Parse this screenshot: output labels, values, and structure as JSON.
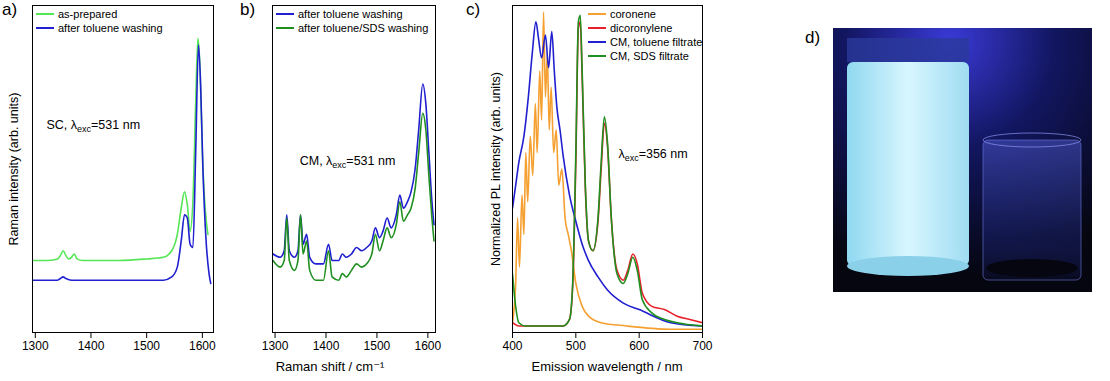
{
  "chart_data": [
    {
      "type": "line",
      "panel": "a)",
      "ylabel": "Raman intensity (arb. units)",
      "annotation": "SC, λexc=531 nm",
      "xlim": [
        1295,
        1620
      ],
      "xticks": [
        1300,
        1400,
        1500,
        1600
      ],
      "ylim": [
        0,
        100
      ],
      "yticks": [],
      "tick_labels": "x",
      "grid": false,
      "legend": "top-left",
      "series": [
        {
          "name": "as-prepared",
          "color": "#55e655",
          "x": [
            1296,
            1320,
            1340,
            1345,
            1350,
            1355,
            1360,
            1365,
            1370,
            1375,
            1385,
            1400,
            1450,
            1500,
            1530,
            1545,
            1555,
            1562,
            1568,
            1573,
            1578,
            1583,
            1588,
            1592,
            1596,
            1600,
            1605,
            1610
          ],
          "values": [
            22,
            22,
            22.5,
            23.5,
            25,
            23.5,
            22.5,
            23,
            24,
            22.5,
            22,
            22,
            22,
            22.5,
            23,
            25,
            30,
            38,
            43,
            39,
            31,
            40,
            70,
            90,
            80,
            55,
            38,
            30
          ]
        },
        {
          "name": "after toluene washing",
          "color": "#2020d0",
          "x": [
            1296,
            1320,
            1340,
            1345,
            1350,
            1355,
            1365,
            1380,
            1400,
            1450,
            1500,
            1530,
            1545,
            1555,
            1562,
            1568,
            1573,
            1578,
            1583,
            1588,
            1593,
            1597,
            1601,
            1606,
            1612,
            1615
          ],
          "values": [
            16,
            16,
            16,
            16.5,
            17,
            16.5,
            16,
            16,
            16,
            16,
            16,
            16,
            17,
            20,
            28,
            36,
            35,
            27,
            26,
            55,
            88,
            75,
            50,
            30,
            18,
            15
          ]
        }
      ]
    },
    {
      "type": "line",
      "panel": "b)",
      "xlabel": "Raman shift / cm⁻¹",
      "annotation": "CM, λexc=531 nm",
      "xlim": [
        1295,
        1615
      ],
      "xticks": [
        1300,
        1400,
        1500,
        1600
      ],
      "ylim": [
        0,
        100
      ],
      "yticks": [],
      "tick_labels": "x",
      "grid": false,
      "legend": "top-left",
      "series": [
        {
          "name": "after toluene washing",
          "color": "#2020d0",
          "x": [
            1296,
            1310,
            1318,
            1323,
            1328,
            1338,
            1345,
            1350,
            1355,
            1362,
            1368,
            1380,
            1395,
            1405,
            1412,
            1425,
            1432,
            1440,
            1450,
            1460,
            1470,
            1480,
            1490,
            1497,
            1505,
            1512,
            1520,
            1528,
            1538,
            1545,
            1552,
            1560,
            1567,
            1575,
            1582,
            1590,
            1596,
            1602,
            1608,
            1612
          ],
          "values": [
            24,
            23,
            25,
            36,
            25,
            23,
            25,
            36,
            27,
            30,
            23,
            21,
            21,
            27,
            22,
            22,
            24,
            23,
            24,
            26,
            25,
            26,
            28,
            32,
            29,
            31,
            35,
            32,
            36,
            42,
            38,
            40,
            43,
            50,
            62,
            76,
            70,
            55,
            40,
            33
          ]
        },
        {
          "name": "after toluene/SDS washing",
          "color": "#1f8f1f",
          "x": [
            1296,
            1310,
            1318,
            1323,
            1328,
            1338,
            1345,
            1350,
            1355,
            1362,
            1368,
            1380,
            1395,
            1405,
            1412,
            1425,
            1432,
            1440,
            1450,
            1460,
            1470,
            1480,
            1490,
            1497,
            1505,
            1512,
            1520,
            1528,
            1538,
            1545,
            1552,
            1560,
            1567,
            1575,
            1582,
            1590,
            1596,
            1602,
            1608,
            1612
          ],
          "values": [
            22,
            20,
            22,
            35,
            22,
            19,
            22,
            36,
            24,
            28,
            19,
            16,
            16,
            25,
            17,
            16,
            18,
            17,
            19,
            21,
            20,
            21,
            24,
            30,
            25,
            28,
            32,
            29,
            33,
            40,
            34,
            36,
            38,
            44,
            55,
            67,
            62,
            48,
            35,
            28
          ]
        }
      ]
    },
    {
      "type": "line",
      "panel": "c)",
      "xlabel": "Emission wavelength / nm",
      "ylabel": "Normalized PL intensity (arb. units)",
      "annotation": "λexc=356 nm",
      "xlim": [
        400,
        700
      ],
      "xticks": [
        400,
        500,
        600,
        700
      ],
      "ylim": [
        0,
        100
      ],
      "yticks": [],
      "tick_labels": "x",
      "grid": false,
      "legend": "top-right",
      "series": [
        {
          "name": "coronene",
          "color": "#f5a030",
          "x": [
            400,
            405,
            408,
            411,
            415,
            418,
            421,
            424,
            428,
            432,
            436,
            439,
            443,
            446,
            449,
            452,
            455,
            458,
            461,
            465,
            469,
            473,
            478,
            483,
            488,
            493,
            500,
            510,
            520,
            540,
            580,
            650,
            700
          ],
          "values": [
            3,
            15,
            35,
            20,
            42,
            30,
            55,
            40,
            60,
            48,
            70,
            55,
            80,
            65,
            98,
            72,
            85,
            62,
            75,
            55,
            62,
            45,
            50,
            35,
            30,
            25,
            15,
            8,
            5,
            3,
            2,
            1,
            1
          ]
        },
        {
          "name": "dicoronylene",
          "color": "#e8202a",
          "x": [
            400,
            410,
            450,
            480,
            490,
            495,
            500,
            504,
            507,
            510,
            515,
            520,
            527,
            535,
            540,
            545,
            550,
            556,
            565,
            575,
            582,
            590,
            597,
            605,
            620,
            640,
            660,
            680,
            700
          ],
          "values": [
            3,
            2,
            2,
            2,
            4,
            14,
            52,
            93,
            95,
            78,
            44,
            28,
            25,
            34,
            50,
            64,
            57,
            35,
            19,
            16,
            19,
            24,
            21,
            12,
            8,
            7,
            5,
            4,
            3
          ]
        },
        {
          "name": "CM, toluene filtrate",
          "color": "#2020d0",
          "x": [
            400,
            405,
            410,
            418,
            425,
            431,
            437,
            441,
            446,
            452,
            457,
            462,
            466,
            470,
            475,
            480,
            490,
            500,
            510,
            520,
            535,
            550,
            575,
            600,
            650,
            700
          ],
          "values": [
            38,
            45,
            52,
            60,
            72,
            85,
            95,
            90,
            84,
            91,
            81,
            92,
            80,
            69,
            62,
            54,
            42,
            34,
            27,
            22,
            17,
            13,
            9,
            7,
            3,
            2
          ]
        },
        {
          "name": "CM, SDS filtrate",
          "color": "#1f8f1f",
          "x": [
            400,
            405,
            410,
            420,
            450,
            480,
            490,
            495,
            500,
            504,
            507,
            510,
            515,
            520,
            527,
            535,
            540,
            545,
            550,
            556,
            565,
            575,
            582,
            590,
            597,
            605,
            620,
            640,
            660,
            700
          ],
          "values": [
            18,
            8,
            3,
            2,
            2,
            2,
            4,
            15,
            55,
            95,
            97,
            80,
            45,
            28,
            25,
            35,
            52,
            66,
            58,
            35,
            18,
            15,
            18,
            23,
            19,
            10,
            6,
            4,
            3,
            2
          ]
        }
      ]
    }
  ],
  "photo": {
    "panel": "d)"
  }
}
